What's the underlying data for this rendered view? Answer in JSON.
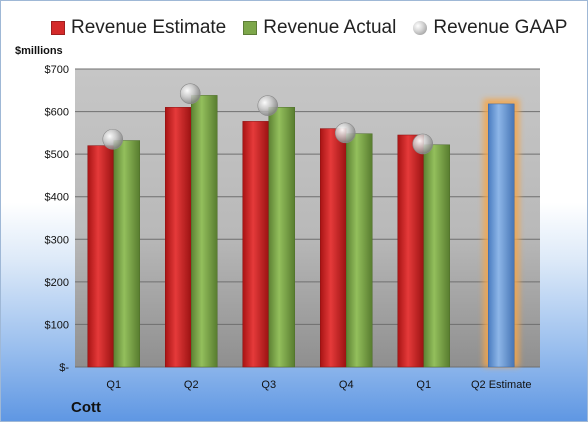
{
  "units_label": "$millions",
  "company": "Cott",
  "colors": {
    "estimate": "#d42a2a",
    "actual": "#7da74a",
    "gaap": "#b0b0b0",
    "forecast": "#6b9bd6",
    "forecast_glow": "#f5a64a"
  },
  "legend": [
    {
      "label": "Revenue Estimate",
      "icon": "red-square"
    },
    {
      "label": "Revenue Actual",
      "icon": "green-square"
    },
    {
      "label": "Revenue GAAP",
      "icon": "gray-sphere"
    }
  ],
  "chart_data": {
    "type": "bar",
    "title": "",
    "xlabel": "",
    "ylabel": "$millions",
    "ylim": [
      0,
      700
    ],
    "yticks": [
      0,
      100,
      200,
      300,
      400,
      500,
      600,
      700
    ],
    "ytick_labels": [
      "$-",
      "$100",
      "$200",
      "$300",
      "$400",
      "$500",
      "$600",
      "$700"
    ],
    "grid": true,
    "legend_position": "top",
    "categories": [
      "Q1",
      "Q2",
      "Q3",
      "Q4",
      "Q1",
      "Q2 Estimate"
    ],
    "series": [
      {
        "name": "Revenue Estimate",
        "type": "bar",
        "values": [
          520,
          610,
          577,
          560,
          545,
          618
        ]
      },
      {
        "name": "Revenue Actual",
        "type": "bar",
        "values": [
          532,
          638,
          610,
          548,
          522,
          null
        ]
      },
      {
        "name": "Revenue GAAP",
        "type": "scatter",
        "values": [
          535,
          642,
          614,
          550,
          524,
          null
        ]
      }
    ]
  }
}
